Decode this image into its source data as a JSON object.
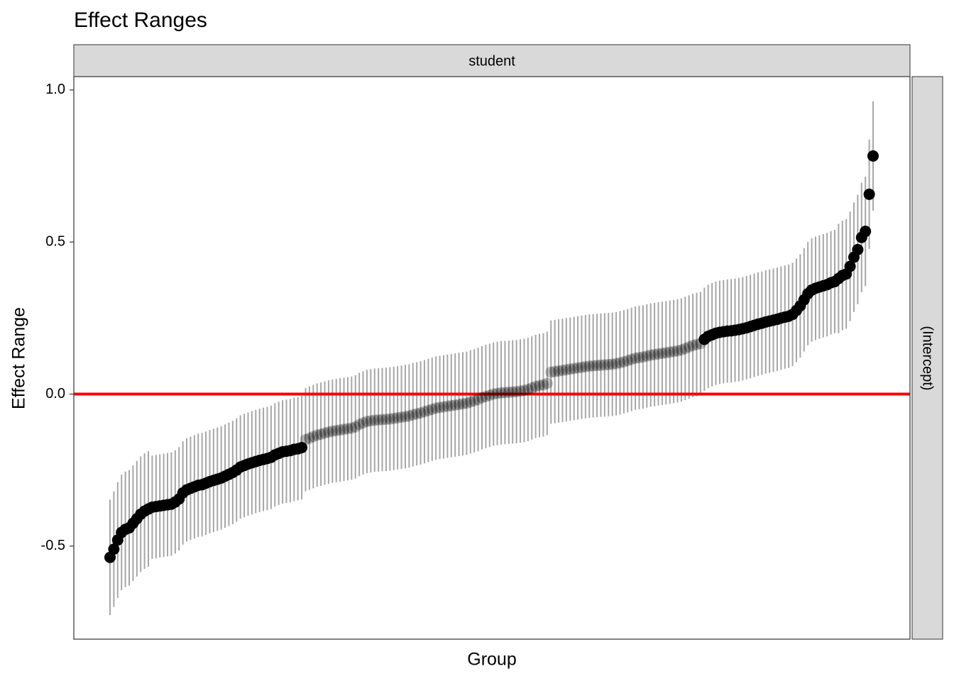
{
  "chart_data": {
    "type": "errorpoint",
    "title": "Effect Ranges",
    "facet_label": "student",
    "strip_label": "(Intercept)",
    "x_label": "Group",
    "y_label": "Effect Range",
    "ylim": [
      -0.806,
      1.044
    ],
    "yticks": [
      -0.5,
      {
        "value": 0,
        "label": "0.0"
      },
      0.5,
      {
        "value": 1,
        "label": "1.0"
      }
    ],
    "hline": 0,
    "hline_color": "#ff0000",
    "point_color": "#000000",
    "errorbar_color": "#a6a6a6",
    "nonsignificant_opacity": 0.25,
    "values": [
      -0.537,
      -0.51,
      -0.48,
      -0.455,
      -0.445,
      -0.44,
      -0.425,
      -0.41,
      -0.395,
      -0.385,
      -0.378,
      -0.372,
      -0.37,
      -0.368,
      -0.366,
      -0.364,
      -0.362,
      -0.355,
      -0.345,
      -0.325,
      -0.315,
      -0.31,
      -0.305,
      -0.3,
      -0.298,
      -0.293,
      -0.288,
      -0.284,
      -0.28,
      -0.276,
      -0.27,
      -0.264,
      -0.258,
      -0.25,
      -0.24,
      -0.235,
      -0.23,
      -0.226,
      -0.222,
      -0.218,
      -0.215,
      -0.212,
      -0.208,
      -0.2,
      -0.195,
      -0.19,
      -0.188,
      -0.186,
      -0.182,
      -0.18,
      -0.176,
      -0.15,
      -0.145,
      -0.14,
      -0.135,
      -0.132,
      -0.128,
      -0.125,
      -0.122,
      -0.12,
      -0.118,
      -0.116,
      -0.114,
      -0.112,
      -0.108,
      -0.1,
      -0.095,
      -0.09,
      -0.088,
      -0.086,
      -0.085,
      -0.084,
      -0.083,
      -0.082,
      -0.08,
      -0.078,
      -0.076,
      -0.074,
      -0.072,
      -0.068,
      -0.065,
      -0.062,
      -0.058,
      -0.054,
      -0.05,
      -0.046,
      -0.044,
      -0.042,
      -0.04,
      -0.038,
      -0.036,
      -0.034,
      -0.032,
      -0.03,
      -0.026,
      -0.022,
      -0.018,
      -0.012,
      -0.008,
      -0.004,
      0,
      0.002,
      0.004,
      0.005,
      0.006,
      0.007,
      0.008,
      0.01,
      0.012,
      0.015,
      0.02,
      0.025,
      0.028,
      0.03,
      0.035,
      0.072,
      0.074,
      0.076,
      0.078,
      0.08,
      0.082,
      0.084,
      0.086,
      0.088,
      0.09,
      0.092,
      0.093,
      0.094,
      0.095,
      0.096,
      0.097,
      0.098,
      0.1,
      0.103,
      0.106,
      0.11,
      0.114,
      0.118,
      0.12,
      0.122,
      0.125,
      0.128,
      0.13,
      0.132,
      0.134,
      0.136,
      0.138,
      0.14,
      0.142,
      0.145,
      0.15,
      0.155,
      0.16,
      0.163,
      0.166,
      0.18,
      0.19,
      0.195,
      0.2,
      0.203,
      0.205,
      0.207,
      0.208,
      0.21,
      0.212,
      0.215,
      0.218,
      0.222,
      0.226,
      0.23,
      0.233,
      0.237,
      0.24,
      0.243,
      0.246,
      0.25,
      0.253,
      0.256,
      0.262,
      0.275,
      0.29,
      0.31,
      0.33,
      0.342,
      0.348,
      0.352,
      0.356,
      0.36,
      0.366,
      0.37,
      0.38,
      0.39,
      0.395,
      0.42,
      0.45,
      0.475,
      0.515,
      0.535,
      0.657,
      0.783
    ],
    "errors": [
      0.19,
      0.19,
      0.19,
      0.19,
      0.19,
      0.19,
      0.19,
      0.19,
      0.19,
      0.19,
      0.19,
      0.17,
      0.17,
      0.17,
      0.17,
      0.17,
      0.17,
      0.17,
      0.17,
      0.17,
      0.17,
      0.17,
      0.17,
      0.17,
      0.17,
      0.17,
      0.17,
      0.17,
      0.17,
      0.17,
      0.17,
      0.17,
      0.17,
      0.17,
      0.17,
      0.17,
      0.17,
      0.17,
      0.17,
      0.17,
      0.17,
      0.17,
      0.17,
      0.17,
      0.17,
      0.17,
      0.17,
      0.17,
      0.17,
      0.17,
      0.17,
      0.17,
      0.17,
      0.17,
      0.17,
      0.17,
      0.17,
      0.17,
      0.17,
      0.17,
      0.17,
      0.17,
      0.17,
      0.17,
      0.17,
      0.17,
      0.17,
      0.17,
      0.17,
      0.17,
      0.17,
      0.17,
      0.17,
      0.17,
      0.17,
      0.17,
      0.17,
      0.17,
      0.17,
      0.17,
      0.17,
      0.17,
      0.17,
      0.17,
      0.17,
      0.17,
      0.17,
      0.17,
      0.17,
      0.17,
      0.17,
      0.17,
      0.17,
      0.17,
      0.17,
      0.17,
      0.17,
      0.17,
      0.17,
      0.17,
      0.17,
      0.17,
      0.17,
      0.17,
      0.17,
      0.17,
      0.17,
      0.17,
      0.17,
      0.17,
      0.17,
      0.17,
      0.17,
      0.17,
      0.17,
      0.17,
      0.17,
      0.17,
      0.17,
      0.17,
      0.17,
      0.17,
      0.17,
      0.17,
      0.17,
      0.17,
      0.17,
      0.17,
      0.17,
      0.17,
      0.17,
      0.17,
      0.17,
      0.17,
      0.17,
      0.17,
      0.17,
      0.17,
      0.17,
      0.17,
      0.17,
      0.17,
      0.17,
      0.17,
      0.17,
      0.17,
      0.17,
      0.17,
      0.17,
      0.17,
      0.17,
      0.17,
      0.17,
      0.17,
      0.17,
      0.17,
      0.17,
      0.17,
      0.17,
      0.17,
      0.17,
      0.17,
      0.17,
      0.17,
      0.17,
      0.17,
      0.17,
      0.17,
      0.17,
      0.17,
      0.17,
      0.17,
      0.17,
      0.17,
      0.17,
      0.17,
      0.17,
      0.17,
      0.17,
      0.17,
      0.17,
      0.17,
      0.17,
      0.17,
      0.17,
      0.17,
      0.17,
      0.17,
      0.17,
      0.17,
      0.18,
      0.18,
      0.18,
      0.18,
      0.18,
      0.18,
      0.18,
      0.18,
      0.18,
      0.18
    ]
  }
}
